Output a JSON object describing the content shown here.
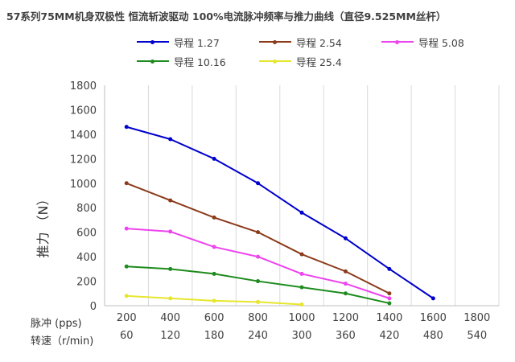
{
  "chart_data": {
    "type": "line",
    "title": "57系列75MM机身双极性 恒流斩波驱动 100%电流脉冲频率与推力曲线（直径9.525MM丝杆）",
    "ylabel": "推力 （N）",
    "xlabel_row1": "脉冲    (pps)",
    "xlabel_row2": "转速（r/min)",
    "categories": [
      "200",
      "400",
      "600",
      "800",
      "1000",
      "1200",
      "1400",
      "1600",
      "1800"
    ],
    "categories_row2": [
      "60",
      "120",
      "180",
      "240",
      "300",
      "360",
      "420",
      "480",
      "540"
    ],
    "ylim": [
      0,
      1800
    ],
    "yticks": [
      "0",
      "200",
      "400",
      "600",
      "800",
      "1000",
      "1200",
      "1400",
      "1600",
      "1800"
    ],
    "grid": "vertical",
    "legend_position": "top",
    "series": [
      {
        "name": "导程 1.27",
        "color": "#0000CC",
        "values": [
          1460,
          1360,
          1200,
          1000,
          760,
          550,
          300,
          60,
          null
        ]
      },
      {
        "name": "导程 2.54",
        "color": "#8B3A1A",
        "values": [
          1000,
          860,
          720,
          600,
          420,
          280,
          100,
          null,
          null
        ]
      },
      {
        "name": "导程  5.08",
        "color": "#EE44EE",
        "values": [
          630,
          605,
          480,
          400,
          260,
          180,
          60,
          null,
          null
        ]
      },
      {
        "name": "导程  10.16",
        "color": "#1E8B1E",
        "values": [
          320,
          300,
          260,
          200,
          150,
          100,
          20,
          null,
          null
        ]
      },
      {
        "name": "导程  25.4",
        "color": "#E6E62E",
        "values": [
          80,
          60,
          40,
          30,
          10,
          null,
          null,
          null,
          null
        ]
      }
    ]
  }
}
